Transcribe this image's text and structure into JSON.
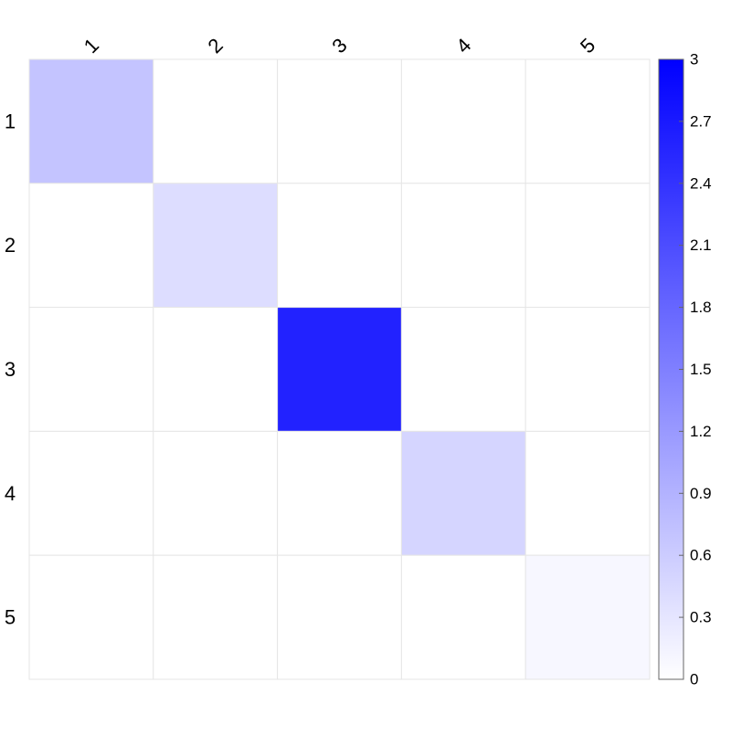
{
  "chart_data": {
    "type": "heatmap",
    "title": "",
    "xlabel": "",
    "ylabel": "",
    "rows": [
      "1",
      "2",
      "3",
      "4",
      "5"
    ],
    "cols": [
      "1",
      "2",
      "3",
      "4",
      "5"
    ],
    "values": [
      [
        0.7,
        0.0,
        0.0,
        0.0,
        0.0
      ],
      [
        0.0,
        0.4,
        0.0,
        0.0,
        0.0
      ],
      [
        0.0,
        0.0,
        2.6,
        0.0,
        0.0
      ],
      [
        0.0,
        0.0,
        0.0,
        0.5,
        0.0
      ],
      [
        0.0,
        0.0,
        0.0,
        0.0,
        0.1
      ]
    ],
    "colorscale": {
      "min": 0,
      "max": 3,
      "low_color": "#ffffff",
      "high_color": "#0000ff",
      "ticks": [
        "0",
        "0.3",
        "0.6",
        "0.9",
        "1.2",
        "1.5",
        "1.8",
        "2.1",
        "2.4",
        "2.7",
        "3"
      ]
    },
    "colors": {
      "grid": "#e6e6e6",
      "colorbar_border": "#666666"
    },
    "grid": true,
    "legend": "colorbar-right"
  }
}
